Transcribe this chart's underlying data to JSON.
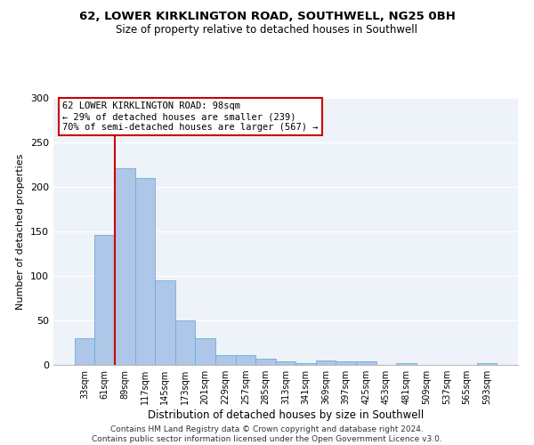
{
  "title": "62, LOWER KIRKLINGTON ROAD, SOUTHWELL, NG25 0BH",
  "subtitle": "Size of property relative to detached houses in Southwell",
  "xlabel": "Distribution of detached houses by size in Southwell",
  "ylabel": "Number of detached properties",
  "bar_color": "#aec6e8",
  "bar_edge_color": "#6aafd6",
  "categories": [
    "33sqm",
    "61sqm",
    "89sqm",
    "117sqm",
    "145sqm",
    "173sqm",
    "201sqm",
    "229sqm",
    "257sqm",
    "285sqm",
    "313sqm",
    "341sqm",
    "369sqm",
    "397sqm",
    "425sqm",
    "453sqm",
    "481sqm",
    "509sqm",
    "537sqm",
    "565sqm",
    "593sqm"
  ],
  "values": [
    30,
    146,
    221,
    210,
    95,
    50,
    30,
    11,
    11,
    7,
    4,
    2,
    5,
    4,
    4,
    0,
    2,
    0,
    0,
    0,
    2
  ],
  "vline_x": 1.5,
  "vline_color": "#cc0000",
  "annotation_text": "62 LOWER KIRKLINGTON ROAD: 98sqm\n← 29% of detached houses are smaller (239)\n70% of semi-detached houses are larger (567) →",
  "ylim": [
    0,
    300
  ],
  "yticks": [
    0,
    50,
    100,
    150,
    200,
    250,
    300
  ],
  "footer": "Contains HM Land Registry data © Crown copyright and database right 2024.\nContains public sector information licensed under the Open Government Licence v3.0.",
  "bg_color": "#eef2f9"
}
